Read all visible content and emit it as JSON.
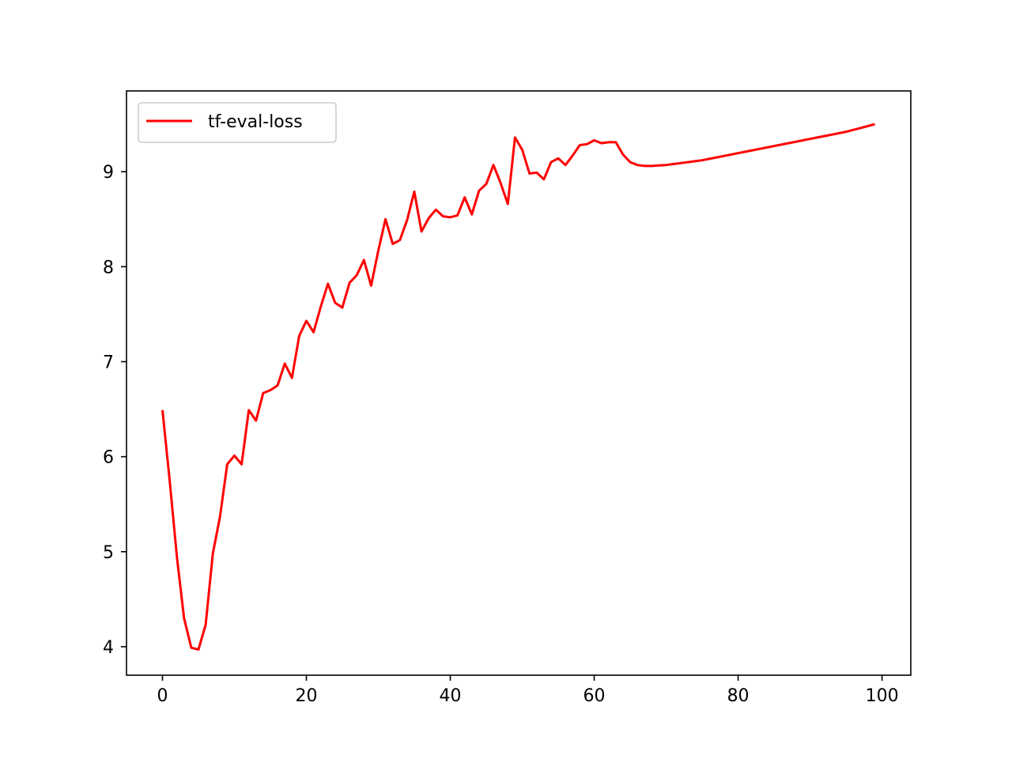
{
  "chart_data": {
    "type": "line",
    "title": "",
    "xlabel": "",
    "ylabel": "",
    "xlim": [
      -5,
      104
    ],
    "ylim": [
      3.7,
      9.85
    ],
    "xticks": [
      0,
      20,
      40,
      60,
      80,
      100
    ],
    "yticks": [
      4,
      5,
      6,
      7,
      8,
      9
    ],
    "xtick_labels": [
      "0",
      "20",
      "40",
      "60",
      "80",
      "100"
    ],
    "ytick_labels": [
      "4",
      "5",
      "6",
      "7",
      "8",
      "9"
    ],
    "grid": false,
    "legend": {
      "position": "top-left",
      "entries": [
        "tf-eval-loss"
      ]
    },
    "series": [
      {
        "name": "tf-eval-loss",
        "color": "#ff0000",
        "x": [
          0,
          1,
          2,
          3,
          4,
          5,
          6,
          7,
          8,
          9,
          10,
          11,
          12,
          13,
          14,
          15,
          16,
          17,
          18,
          19,
          20,
          21,
          22,
          23,
          24,
          25,
          26,
          27,
          28,
          29,
          30,
          31,
          32,
          33,
          34,
          35,
          36,
          37,
          38,
          39,
          40,
          41,
          42,
          43,
          44,
          45,
          46,
          47,
          48,
          49,
          50,
          51,
          52,
          53,
          54,
          55,
          56,
          57,
          58,
          59,
          60,
          61,
          62,
          63,
          64,
          65,
          66,
          67,
          68,
          69,
          70,
          71,
          72,
          73,
          74,
          75,
          76,
          77,
          78,
          79,
          80,
          81,
          82,
          83,
          84,
          85,
          86,
          87,
          88,
          89,
          90,
          91,
          92,
          93,
          94,
          95,
          96,
          97,
          98,
          99
        ],
        "values": [
          6.49,
          5.75,
          4.95,
          4.3,
          3.99,
          3.97,
          4.23,
          4.98,
          5.37,
          5.92,
          6.01,
          5.92,
          6.49,
          6.38,
          6.67,
          6.7,
          6.75,
          6.98,
          6.83,
          7.27,
          7.43,
          7.31,
          7.58,
          7.82,
          7.62,
          7.57,
          7.83,
          7.91,
          8.07,
          7.8,
          8.17,
          8.5,
          8.24,
          8.28,
          8.49,
          8.79,
          8.37,
          8.51,
          8.6,
          8.53,
          8.52,
          8.54,
          8.73,
          8.55,
          8.8,
          8.87,
          9.07,
          8.88,
          8.66,
          9.36,
          9.23,
          8.98,
          8.99,
          8.92,
          9.1,
          9.14,
          9.07,
          9.17,
          9.28,
          9.29,
          9.33,
          9.3,
          9.31,
          9.31,
          9.18,
          9.1,
          9.07,
          9.06,
          9.06,
          9.065,
          9.07,
          9.08,
          9.09,
          9.1,
          9.11,
          9.12,
          9.135,
          9.15,
          9.165,
          9.18,
          9.195,
          9.21,
          9.225,
          9.24,
          9.255,
          9.27,
          9.285,
          9.3,
          9.315,
          9.33,
          9.345,
          9.36,
          9.375,
          9.39,
          9.405,
          9.42,
          9.44,
          9.46,
          9.48,
          9.5
        ]
      }
    ]
  }
}
